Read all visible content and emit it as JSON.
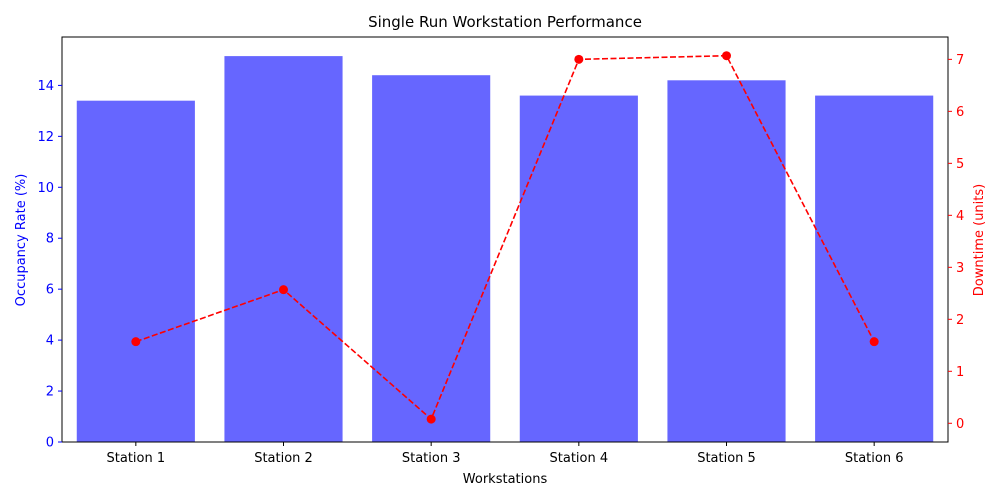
{
  "chart_data": {
    "type": "bar",
    "title": "Single Run Workstation Performance",
    "xlabel": "Workstations",
    "ylabel": "Occupancy Rate (%)",
    "y2label": "Downtime (units)",
    "categories": [
      "Station 1",
      "Station 2",
      "Station 3",
      "Station 4",
      "Station 5",
      "Station 6"
    ],
    "series": [
      {
        "type": "bar",
        "axis": "left",
        "color": "#6666ff",
        "values": [
          13.4,
          15.15,
          14.4,
          13.6,
          14.2,
          13.6
        ]
      },
      {
        "type": "line",
        "axis": "right",
        "color": "#ff0000",
        "line_style": "dashed",
        "marker": "circle",
        "values": [
          1.57,
          2.57,
          0.08,
          7.0,
          7.07,
          1.57
        ]
      }
    ],
    "ylim": [
      0,
      15.9
    ],
    "y2lim": [
      -0.36,
      7.43
    ],
    "yticks": [
      0,
      2,
      4,
      6,
      8,
      10,
      12,
      14
    ],
    "y2ticks": [
      0,
      1,
      2,
      3,
      4,
      5,
      6,
      7
    ],
    "left_axis_color": "#0000ff",
    "right_axis_color": "#ff0000",
    "grid": false,
    "legend": "none"
  }
}
